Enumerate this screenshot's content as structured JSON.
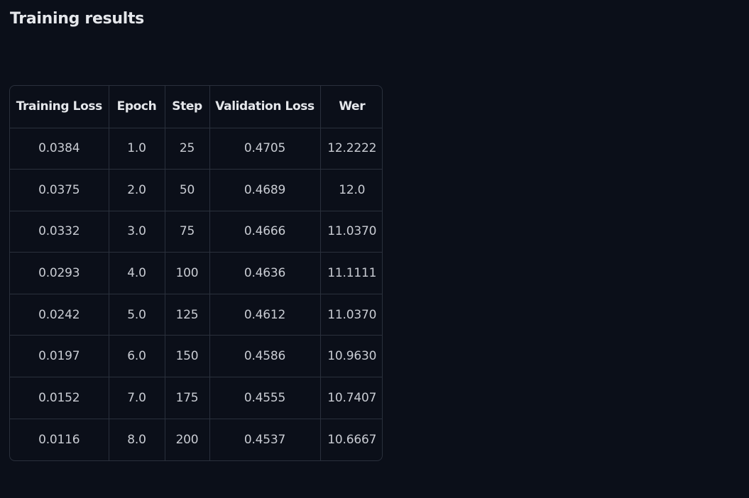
{
  "page": {
    "title": "Training results"
  },
  "table": {
    "headers": [
      "Training Loss",
      "Epoch",
      "Step",
      "Validation Loss",
      "Wer"
    ],
    "rows": [
      [
        "0.0384",
        "1.0",
        "25",
        "0.4705",
        "12.2222"
      ],
      [
        "0.0375",
        "2.0",
        "50",
        "0.4689",
        "12.0"
      ],
      [
        "0.0332",
        "3.0",
        "75",
        "0.4666",
        "11.0370"
      ],
      [
        "0.0293",
        "4.0",
        "100",
        "0.4636",
        "11.1111"
      ],
      [
        "0.0242",
        "5.0",
        "125",
        "0.4612",
        "11.0370"
      ],
      [
        "0.0197",
        "6.0",
        "150",
        "0.4586",
        "10.9630"
      ],
      [
        "0.0152",
        "7.0",
        "175",
        "0.4555",
        "10.7407"
      ],
      [
        "0.0116",
        "8.0",
        "200",
        "0.4537",
        "10.6667"
      ]
    ]
  },
  "colors": {
    "background": "#0b0f19",
    "border": "#2a303c",
    "header_text": "#e5e7eb",
    "cell_text": "#c9ccd3"
  }
}
